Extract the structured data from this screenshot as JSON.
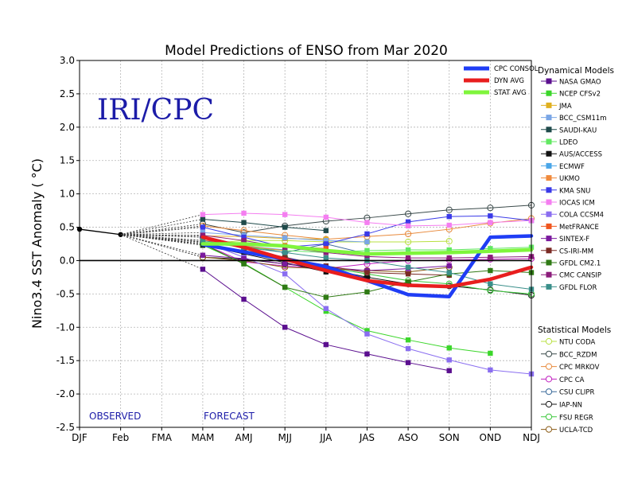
{
  "chart_data": {
    "type": "line",
    "title": "Model Predictions of ENSO from Mar 2020",
    "ylabel": "Nino3.4 SST Anomaly ( °C)",
    "watermark": "IRI/CPC",
    "observed_label": "OBSERVED",
    "forecast_label": "FORECAST",
    "x": [
      "DJF",
      "Feb",
      "FMA",
      "MAM",
      "AMJ",
      "MJJ",
      "JJA",
      "JAS",
      "ASO",
      "SON",
      "OND",
      "NDJ"
    ],
    "ylim": [
      -2.5,
      3.0
    ],
    "yticks": [
      "3.0",
      "2.5",
      "2.0",
      "1.5",
      "1.0",
      "0.5",
      "0.0",
      "-0.5",
      "-1.0",
      "-1.5",
      "-2.0",
      "-2.5"
    ],
    "grid": true,
    "observed": [
      0.47,
      0.39
    ],
    "consensus_legend_placement": "top-right",
    "consensus": [
      {
        "name": "CPC CONSOL",
        "color": "#1f3df5",
        "values": [
          null,
          null,
          null,
          0.24,
          0.13,
          0.02,
          -0.09,
          -0.3,
          -0.51,
          -0.54,
          0.35,
          0.37
        ]
      },
      {
        "name": "DYN AVG",
        "color": "#e81e1e",
        "values": [
          null,
          null,
          null,
          0.35,
          0.2,
          0.02,
          -0.15,
          -0.3,
          -0.37,
          -0.39,
          -0.28,
          -0.1
        ]
      },
      {
        "name": "STAT AVG",
        "color": "#7ff53c",
        "values": [
          null,
          null,
          null,
          0.25,
          0.25,
          0.22,
          0.15,
          0.1,
          0.11,
          0.12,
          0.14,
          0.16
        ]
      }
    ],
    "dynamical_title": "Dynamical Models",
    "dynamical": [
      {
        "name": "NASA GMAO",
        "color": "#5b0f8f",
        "values": [
          null,
          null,
          null,
          -0.13,
          -0.58,
          -1.0,
          -1.26,
          -1.4,
          -1.53,
          -1.65,
          null,
          null
        ]
      },
      {
        "name": "NCEP CFSv2",
        "color": "#3bd62a",
        "values": [
          null,
          null,
          null,
          0.23,
          -0.04,
          -0.4,
          -0.76,
          -1.05,
          -1.19,
          -1.31,
          -1.39,
          null
        ]
      },
      {
        "name": "JMA",
        "color": "#e0b020",
        "values": [
          null,
          null,
          null,
          0.37,
          0.36,
          0.33,
          0.32,
          null,
          null,
          null,
          null,
          null
        ]
      },
      {
        "name": "BCC_CSM11m",
        "color": "#7aa6e6",
        "values": [
          null,
          null,
          null,
          0.42,
          0.38,
          0.34,
          0.3,
          0.28,
          null,
          null,
          null,
          null
        ]
      },
      {
        "name": "SAUDI-KAU",
        "color": "#1f4a4a",
        "values": [
          null,
          null,
          null,
          0.62,
          0.57,
          0.5,
          0.45,
          null,
          null,
          null,
          null,
          null
        ]
      },
      {
        "name": "LDEO",
        "color": "#62e862",
        "values": [
          null,
          null,
          null,
          0.27,
          0.2,
          0.15,
          0.12,
          0.15,
          0.16,
          0.16,
          0.18,
          0.2
        ]
      },
      {
        "name": "AUS/ACCESS",
        "color": "#111111",
        "values": [
          null,
          null,
          null,
          0.23,
          0.1,
          -0.03,
          -0.17,
          -0.26,
          null,
          null,
          null,
          null
        ]
      },
      {
        "name": "ECMWF",
        "color": "#4aa6e8",
        "values": [
          null,
          null,
          null,
          0.28,
          0.22,
          0.16,
          null,
          null,
          null,
          null,
          null,
          null
        ]
      },
      {
        "name": "UKMO",
        "color": "#f08a3c",
        "values": [
          null,
          null,
          null,
          0.3,
          0.22,
          0.15,
          null,
          null,
          null,
          null,
          null,
          null
        ]
      },
      {
        "name": "KMA SNU",
        "color": "#3a3ae8",
        "values": [
          null,
          null,
          null,
          0.5,
          0.35,
          0.2,
          0.25,
          0.4,
          0.58,
          0.66,
          0.67,
          0.6
        ]
      },
      {
        "name": "IOCAS ICM",
        "color": "#f47ef0",
        "values": [
          null,
          null,
          null,
          0.69,
          0.71,
          0.69,
          0.65,
          0.57,
          0.52,
          0.53,
          0.57,
          0.6
        ]
      },
      {
        "name": "COLA CCSM4",
        "color": "#8a6ef0",
        "values": [
          null,
          null,
          null,
          0.28,
          0.05,
          -0.2,
          -0.72,
          -1.1,
          -1.32,
          -1.49,
          -1.64,
          -1.7
        ]
      },
      {
        "name": "MetFRANCE",
        "color": "#f0561e",
        "values": [
          null,
          null,
          null,
          0.3,
          0.26,
          0.22,
          0.18,
          null,
          null,
          null,
          null,
          null
        ]
      },
      {
        "name": "SINTEX-F",
        "color": "#7b1a9e",
        "values": [
          null,
          null,
          null,
          0.08,
          0.03,
          -0.05,
          -0.1,
          -0.15,
          -0.12,
          -0.08,
          null,
          null
        ]
      },
      {
        "name": "CS-IRI-MM",
        "color": "#7a2a24",
        "values": [
          null,
          null,
          null,
          0.35,
          0.18,
          0.05,
          -0.08,
          -0.18,
          -0.2,
          -0.22,
          null,
          null
        ]
      },
      {
        "name": "GFDL CM2.1",
        "color": "#2f7a14",
        "values": [
          null,
          null,
          null,
          0.25,
          -0.05,
          -0.4,
          -0.55,
          -0.47,
          -0.32,
          -0.2,
          -0.15,
          -0.18
        ]
      },
      {
        "name": "CMC CANSIP",
        "color": "#8b1c7a",
        "values": [
          null,
          null,
          null,
          0.38,
          0.3,
          0.2,
          0.12,
          0.06,
          0.04,
          0.04,
          0.05,
          0.06
        ]
      },
      {
        "name": "GFDL FLOR",
        "color": "#3a8f8a",
        "values": [
          null,
          null,
          null,
          0.3,
          0.2,
          0.12,
          0.04,
          0.0,
          -0.1,
          -0.18,
          -0.35,
          -0.43
        ]
      }
    ],
    "statistical_title": "Statistical Models",
    "statistical": [
      {
        "name": "NTU CODA",
        "color": "#b8e040",
        "values": [
          null,
          null,
          null,
          0.25,
          0.3,
          0.3,
          0.28,
          0.28,
          0.28,
          0.29,
          null,
          null
        ]
      },
      {
        "name": "BCC_RZDM",
        "color": "#3a4a4a",
        "values": [
          null,
          null,
          null,
          0.55,
          0.42,
          0.52,
          0.59,
          0.64,
          0.7,
          0.76,
          0.79,
          0.83
        ]
      },
      {
        "name": "CPC MRKOV",
        "color": "#e88a3c",
        "values": [
          null,
          null,
          null,
          0.52,
          0.45,
          0.38,
          0.32,
          0.36,
          0.4,
          0.47,
          0.56,
          0.63
        ]
      },
      {
        "name": "CPC CA",
        "color": "#c020c0",
        "values": [
          null,
          null,
          null,
          0.25,
          -0.02,
          -0.08,
          -0.12,
          -0.05,
          0.0,
          0.01,
          0.02,
          0.03
        ]
      },
      {
        "name": "CSU CLIPR",
        "color": "#3a6a9a",
        "values": [
          null,
          null,
          null,
          0.35,
          0.22,
          0.12,
          0.25,
          0.1,
          null,
          null,
          null,
          null
        ]
      },
      {
        "name": "IAP-NN",
        "color": "#141414",
        "values": [
          null,
          null,
          null,
          0.05,
          0.02,
          -0.05,
          -0.12,
          -0.25,
          -0.35,
          -0.38,
          -0.44,
          -0.52
        ]
      },
      {
        "name": "FSU REGR",
        "color": "#3cc83c",
        "values": [
          null,
          null,
          null,
          0.25,
          0.15,
          0.05,
          -0.1,
          -0.2,
          -0.3,
          -0.35,
          -0.45,
          -0.5
        ]
      },
      {
        "name": "UCLA-TCD",
        "color": "#8a5a14",
        "values": [
          null,
          null,
          null,
          0.05,
          0.0,
          -0.1,
          -0.12,
          -0.15,
          -0.17,
          -0.1,
          null,
          null
        ]
      }
    ]
  }
}
